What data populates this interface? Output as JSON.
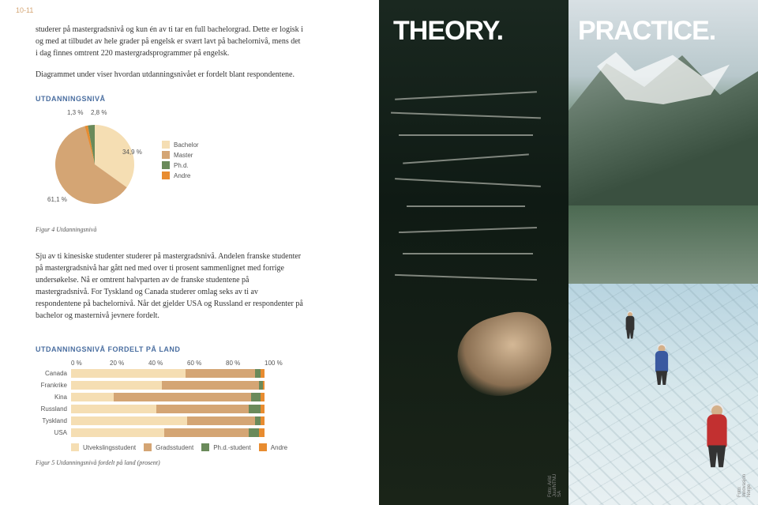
{
  "page_number": "10-11",
  "intro_paragraph": "studerer på mastergradsnivå og kun én av ti tar en full bachelorgrad. Dette er logisk i og med at tilbudet av hele grader på engelsk er svært lavt på bachelornivå, mens det i dag finnes omtrent 220 mastergradsprogrammer på engelsk.",
  "intro_line2": "Diagrammet under viser hvordan utdanningsnivået er fordelt blant respondentene.",
  "pie": {
    "title": "UTDANNINGSNIVÅ",
    "slices": [
      {
        "label": "Bachelor",
        "value": 34.9,
        "label_text": "34,9 %",
        "color": "#f5deb3"
      },
      {
        "label": "Master",
        "value": 61.1,
        "label_text": "61,1 %",
        "color": "#d4a574"
      },
      {
        "label": "Ph.d.",
        "value": 2.8,
        "label_text": "2,8 %",
        "color": "#6a8a5a"
      },
      {
        "label": "Andre",
        "value": 1.3,
        "label_text": "1,3 %",
        "color": "#e88c30"
      }
    ],
    "caption": "Figur 4 Utdanningsnivå"
  },
  "mid_paragraph": "Sju av ti kinesiske studenter studerer på mastergradsnivå. Andelen franske studenter på mastergradsnivå har gått ned med over ti prosent sammenlignet med forrige undersøkelse. Nå er omtrent halvparten av de franske studentene på mastergradsnivå. For Tyskland og Canada studerer omlag seks av ti av respondentene på bachelornivå. Når det gjelder USA og Russland er respondenter på bachelor og masternivå jevnere fordelt.",
  "bars": {
    "title": "UTDANNINGSNIVÅ FORDELT PÅ LAND",
    "axis": [
      "0 %",
      "20 %",
      "40 %",
      "60 %",
      "80 %",
      "100 %"
    ],
    "legend": [
      {
        "label": "Utvekslingsstudent",
        "color": "#f5deb3"
      },
      {
        "label": "Gradsstudent",
        "color": "#d4a574"
      },
      {
        "label": "Ph.d.-student",
        "color": "#6a8a5a"
      },
      {
        "label": "Andre",
        "color": "#e88c30"
      }
    ],
    "rows": [
      {
        "label": "Canada",
        "segs": [
          59,
          36,
          3,
          2
        ]
      },
      {
        "label": "Frankrike",
        "segs": [
          47,
          50,
          2,
          1
        ]
      },
      {
        "label": "Kina",
        "segs": [
          22,
          71,
          5,
          2
        ]
      },
      {
        "label": "Russland",
        "segs": [
          44,
          48,
          6,
          2
        ]
      },
      {
        "label": "Tyskland",
        "segs": [
          60,
          35,
          3,
          2
        ]
      },
      {
        "label": "USA",
        "segs": [
          48,
          44,
          5,
          3
        ]
      }
    ],
    "caption": "Figur 5 Utdanningsnivå fordelt på land (prosent)"
  },
  "right": {
    "theory_heading": "THEORY.",
    "practice_heading": "PRACTICE.",
    "credit_left": "Foto: Arild Juul/NTNU SA",
    "credit_right": "Foto: Innovasjon Norge"
  }
}
